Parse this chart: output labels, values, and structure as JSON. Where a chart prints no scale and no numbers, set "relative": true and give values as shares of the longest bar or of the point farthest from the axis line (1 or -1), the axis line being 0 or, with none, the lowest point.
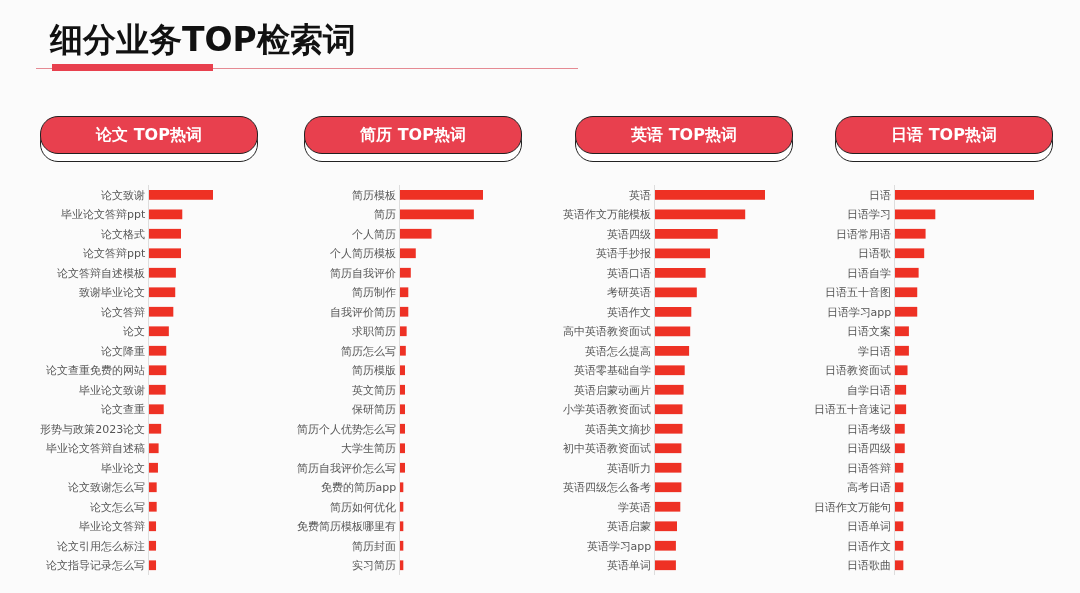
{
  "chart_data": [
    {
      "type": "other",
      "title": "细分业务TOP检索词"
    },
    {
      "type": "bar",
      "orientation": "horizontal",
      "relative": true,
      "title": "论文 TOP热词",
      "color": "#ee3124",
      "categories": [
        "论文致谢",
        "毕业论文答辩ppt",
        "论文格式",
        "论文答辩ppt",
        "论文答辩自述模板",
        "致谢毕业论文",
        "论文答辩",
        "论文",
        "论文降重",
        "论文查重免费的网站",
        "毕业论文致谢",
        "论文查重",
        "形势与政策2023论文",
        "毕业论文答辩自述稿",
        "毕业论文",
        "论文致谢怎么写",
        "论文怎么写",
        "毕业论文答辩",
        "论文引用怎么标注",
        "论文指导记录怎么写"
      ],
      "values": [
        1,
        0.52,
        0.5,
        0.5,
        0.42,
        0.41,
        0.38,
        0.31,
        0.27,
        0.27,
        0.26,
        0.23,
        0.19,
        0.15,
        0.14,
        0.12,
        0.12,
        0.11,
        0.11,
        0.11
      ]
    },
    {
      "type": "bar",
      "orientation": "horizontal",
      "relative": true,
      "title": "简历 TOP热词",
      "color": "#ee3124",
      "categories": [
        "简历模板",
        "简历",
        "个人简历",
        "个人简历模板",
        "简历自我评价",
        "简历制作",
        "自我评价简历",
        "求职简历",
        "简历怎么写",
        "简历模版",
        "英文简历",
        "保研简历",
        "简历个人优势怎么写",
        "大学生简历",
        "简历自我评价怎么写",
        "免费的简历app",
        "简历如何优化",
        "免费简历模板哪里有",
        "简历封面",
        "实习简历"
      ],
      "values": [
        1,
        0.89,
        0.38,
        0.19,
        0.13,
        0.1,
        0.1,
        0.08,
        0.07,
        0.06,
        0.06,
        0.06,
        0.06,
        0.06,
        0.06,
        0.04,
        0.04,
        0.04,
        0.04,
        0.04
      ]
    },
    {
      "type": "bar",
      "orientation": "horizontal",
      "relative": true,
      "title": "英语 TOP热词",
      "color": "#ee3124",
      "categories": [
        "英语",
        "英语作文万能模板",
        "英语四级",
        "英语手抄报",
        "英语口语",
        "考研英语",
        "英语作文",
        "高中英语教资面试",
        "英语怎么提高",
        "英语零基础自学",
        "英语启蒙动画片",
        "小学英语教资面试",
        "英语美文摘抄",
        "初中英语教资面试",
        "英语听力",
        "英语四级怎么备考",
        "学英语",
        "英语启蒙",
        "英语学习app",
        "英语单词"
      ],
      "values": [
        1,
        0.82,
        0.57,
        0.5,
        0.46,
        0.38,
        0.33,
        0.32,
        0.31,
        0.27,
        0.26,
        0.25,
        0.25,
        0.24,
        0.24,
        0.24,
        0.23,
        0.2,
        0.19,
        0.19
      ]
    },
    {
      "type": "bar",
      "orientation": "horizontal",
      "relative": true,
      "title": "日语 TOP热词",
      "color": "#ee3124",
      "categories": [
        "日语",
        "日语学习",
        "日语常用语",
        "日语歌",
        "日语自学",
        "日语五十音图",
        "日语学习app",
        "日语文案",
        "学日语",
        "日语教资面试",
        "自学日语",
        "日语五十音速记",
        "日语考级",
        "日语四级",
        "日语答辩",
        "高考日语",
        "日语作文万能句",
        "日语单词",
        "日语作文",
        "日语歌曲"
      ],
      "values": [
        1,
        0.29,
        0.22,
        0.21,
        0.17,
        0.16,
        0.16,
        0.1,
        0.1,
        0.09,
        0.08,
        0.08,
        0.07,
        0.07,
        0.06,
        0.06,
        0.06,
        0.06,
        0.06,
        0.06
      ]
    }
  ]
}
